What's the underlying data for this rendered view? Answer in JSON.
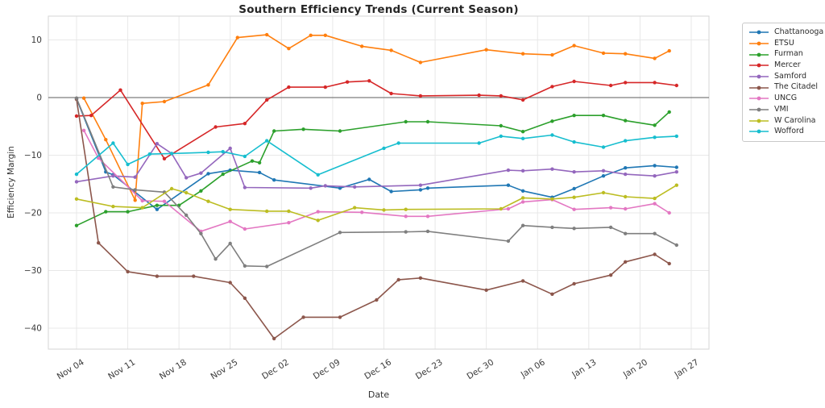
{
  "figure": {
    "title": "Southern Efficiency Trends (Current Season)",
    "xlabel": "Date",
    "ylabel": "Efficiency Margin"
  },
  "chart_data": {
    "type": "line",
    "title": "Southern Efficiency Trends (Current Season)",
    "xlabel": "Date",
    "ylabel": "Efficiency Margin",
    "grid": true,
    "zero_line": true,
    "legend_position": "outside-right",
    "x_tick_labels": [
      "Nov 04",
      "Nov 11",
      "Nov 18",
      "Nov 25",
      "Dec 02",
      "Dec 09",
      "Dec 16",
      "Dec 23",
      "Dec 30",
      "Jan 06",
      "Jan 13",
      "Jan 20",
      "Jan 27"
    ],
    "y_ticks": [
      10,
      0,
      -10,
      -20,
      -30,
      -40
    ],
    "ylim": [
      -43.5,
      13.8
    ],
    "series": [
      {
        "name": "Chattanooga",
        "color": "#1f77b4",
        "points": [
          [
            "Nov 04",
            -0.2
          ],
          [
            "Nov 08",
            -12.9
          ],
          [
            "Nov 09",
            -13.4
          ],
          [
            "Nov 15",
            -19.4
          ],
          [
            "Nov 22",
            -13.2
          ],
          [
            "Nov 25",
            -12.6
          ],
          [
            "Nov 29",
            -13.0
          ],
          [
            "Dec 01",
            -14.3
          ],
          [
            "Dec 10",
            -15.7
          ],
          [
            "Dec 14",
            -14.2
          ],
          [
            "Dec 17",
            -16.3
          ],
          [
            "Dec 21",
            -16.0
          ],
          [
            "Dec 22",
            -15.7
          ],
          [
            "Jan 02",
            -15.2
          ],
          [
            "Jan 04",
            -16.2
          ],
          [
            "Jan 08",
            -17.3
          ],
          [
            "Jan 11",
            -15.8
          ],
          [
            "Jan 15",
            -13.6
          ],
          [
            "Jan 18",
            -12.2
          ],
          [
            "Jan 22",
            -11.8
          ],
          [
            "Jan 25",
            -12.1
          ]
        ]
      },
      {
        "name": "ETSU",
        "color": "#ff7f0e",
        "points": [
          [
            "Nov 05",
            -0.1
          ],
          [
            "Nov 08",
            -7.3
          ],
          [
            "Nov 12",
            -17.8
          ],
          [
            "Nov 13",
            -1.0
          ],
          [
            "Nov 16",
            -0.7
          ],
          [
            "Nov 22",
            2.2
          ],
          [
            "Nov 26",
            10.4
          ],
          [
            "Nov 30",
            10.9
          ],
          [
            "Dec 03",
            8.5
          ],
          [
            "Dec 06",
            10.8
          ],
          [
            "Dec 08",
            10.8
          ],
          [
            "Dec 13",
            8.9
          ],
          [
            "Dec 17",
            8.2
          ],
          [
            "Dec 21",
            6.1
          ],
          [
            "Dec 30",
            8.3
          ],
          [
            "Jan 04",
            7.6
          ],
          [
            "Jan 08",
            7.4
          ],
          [
            "Jan 11",
            9.0
          ],
          [
            "Jan 15",
            7.7
          ],
          [
            "Jan 18",
            7.6
          ],
          [
            "Jan 22",
            6.8
          ],
          [
            "Jan 24",
            8.1
          ]
        ]
      },
      {
        "name": "Furman",
        "color": "#2ca02c",
        "points": [
          [
            "Nov 04",
            -22.2
          ],
          [
            "Nov 08",
            -19.8
          ],
          [
            "Nov 11",
            -19.8
          ],
          [
            "Nov 15",
            -18.7
          ],
          [
            "Nov 18",
            -18.7
          ],
          [
            "Nov 21",
            -16.2
          ],
          [
            "Nov 24",
            -13.3
          ],
          [
            "Nov 28",
            -11.0
          ],
          [
            "Nov 29",
            -11.3
          ],
          [
            "Dec 01",
            -5.8
          ],
          [
            "Dec 05",
            -5.5
          ],
          [
            "Dec 10",
            -5.8
          ],
          [
            "Dec 19",
            -4.2
          ],
          [
            "Dec 22",
            -4.2
          ],
          [
            "Jan 01",
            -4.9
          ],
          [
            "Jan 04",
            -5.9
          ],
          [
            "Jan 08",
            -4.1
          ],
          [
            "Jan 11",
            -3.1
          ],
          [
            "Jan 15",
            -3.1
          ],
          [
            "Jan 18",
            -4.0
          ],
          [
            "Jan 22",
            -4.8
          ],
          [
            "Jan 24",
            -2.5
          ]
        ]
      },
      {
        "name": "Mercer",
        "color": "#d62728",
        "points": [
          [
            "Nov 04",
            -3.2
          ],
          [
            "Nov 06",
            -3.1
          ],
          [
            "Nov 10",
            1.3
          ],
          [
            "Nov 16",
            -10.6
          ],
          [
            "Nov 23",
            -5.1
          ],
          [
            "Nov 27",
            -4.5
          ],
          [
            "Nov 30",
            -0.4
          ],
          [
            "Dec 03",
            1.8
          ],
          [
            "Dec 08",
            1.8
          ],
          [
            "Dec 11",
            2.7
          ],
          [
            "Dec 14",
            2.9
          ],
          [
            "Dec 17",
            0.7
          ],
          [
            "Dec 21",
            0.3
          ],
          [
            "Dec 29",
            0.4
          ],
          [
            "Jan 01",
            0.3
          ],
          [
            "Jan 04",
            -0.4
          ],
          [
            "Jan 08",
            1.9
          ],
          [
            "Jan 11",
            2.8
          ],
          [
            "Jan 16",
            2.1
          ],
          [
            "Jan 18",
            2.6
          ],
          [
            "Jan 22",
            2.6
          ],
          [
            "Jan 25",
            2.1
          ]
        ]
      },
      {
        "name": "Samford",
        "color": "#9467bd",
        "points": [
          [
            "Nov 04",
            -14.6
          ],
          [
            "Nov 09",
            -13.6
          ],
          [
            "Nov 12",
            -13.8
          ],
          [
            "Nov 15",
            -8.0
          ],
          [
            "Nov 17",
            -9.7
          ],
          [
            "Nov 19",
            -13.9
          ],
          [
            "Nov 21",
            -13.1
          ],
          [
            "Nov 25",
            -8.8
          ],
          [
            "Nov 27",
            -15.6
          ],
          [
            "Dec 06",
            -15.7
          ],
          [
            "Dec 08",
            -15.3
          ],
          [
            "Dec 12",
            -15.5
          ],
          [
            "Dec 21",
            -15.2
          ],
          [
            "Jan 02",
            -12.6
          ],
          [
            "Jan 04",
            -12.7
          ],
          [
            "Jan 08",
            -12.4
          ],
          [
            "Jan 11",
            -12.9
          ],
          [
            "Jan 15",
            -12.7
          ],
          [
            "Jan 18",
            -13.3
          ],
          [
            "Jan 22",
            -13.6
          ],
          [
            "Jan 25",
            -12.9
          ]
        ]
      },
      {
        "name": "The Citadel",
        "color": "#8c564b",
        "points": [
          [
            "Nov 04",
            -0.3
          ],
          [
            "Nov 07",
            -25.2
          ],
          [
            "Nov 11",
            -30.2
          ],
          [
            "Nov 15",
            -31.0
          ],
          [
            "Nov 20",
            -31.0
          ],
          [
            "Nov 25",
            -32.1
          ],
          [
            "Nov 27",
            -34.8
          ],
          [
            "Dec 01",
            -41.8
          ],
          [
            "Dec 05",
            -38.1
          ],
          [
            "Dec 10",
            -38.1
          ],
          [
            "Dec 15",
            -35.1
          ],
          [
            "Dec 18",
            -31.6
          ],
          [
            "Dec 21",
            -31.3
          ],
          [
            "Dec 30",
            -33.4
          ],
          [
            "Jan 04",
            -31.8
          ],
          [
            "Jan 08",
            -34.1
          ],
          [
            "Jan 11",
            -32.3
          ],
          [
            "Jan 16",
            -30.8
          ],
          [
            "Jan 18",
            -28.5
          ],
          [
            "Jan 22",
            -27.2
          ],
          [
            "Jan 24",
            -28.8
          ]
        ]
      },
      {
        "name": "UNCG",
        "color": "#e377c2",
        "points": [
          [
            "Nov 05",
            -5.7
          ],
          [
            "Nov 07",
            -10.5
          ],
          [
            "Nov 13",
            -17.9
          ],
          [
            "Nov 16",
            -18.0
          ],
          [
            "Nov 21",
            -23.2
          ],
          [
            "Nov 25",
            -21.5
          ],
          [
            "Nov 27",
            -22.8
          ],
          [
            "Dec 03",
            -21.7
          ],
          [
            "Dec 07",
            -19.8
          ],
          [
            "Dec 13",
            -19.9
          ],
          [
            "Dec 19",
            -20.6
          ],
          [
            "Dec 22",
            -20.6
          ],
          [
            "Jan 02",
            -19.3
          ],
          [
            "Jan 04",
            -18.1
          ],
          [
            "Jan 08",
            -17.7
          ],
          [
            "Jan 11",
            -19.4
          ],
          [
            "Jan 16",
            -19.1
          ],
          [
            "Jan 18",
            -19.3
          ],
          [
            "Jan 22",
            -18.4
          ],
          [
            "Jan 24",
            -20.0
          ]
        ]
      },
      {
        "name": "VMI",
        "color": "#7f7f7f",
        "points": [
          [
            "Nov 04",
            -0.1
          ],
          [
            "Nov 09",
            -15.5
          ],
          [
            "Nov 12",
            -16.0
          ],
          [
            "Nov 16",
            -16.4
          ],
          [
            "Nov 19",
            -20.4
          ],
          [
            "Nov 21",
            -23.6
          ],
          [
            "Nov 23",
            -28.0
          ],
          [
            "Nov 25",
            -25.3
          ],
          [
            "Nov 27",
            -29.2
          ],
          [
            "Nov 30",
            -29.3
          ],
          [
            "Dec 10",
            -23.4
          ],
          [
            "Dec 19",
            -23.3
          ],
          [
            "Dec 22",
            -23.2
          ],
          [
            "Jan 02",
            -24.9
          ],
          [
            "Jan 04",
            -22.2
          ],
          [
            "Jan 08",
            -22.5
          ],
          [
            "Jan 11",
            -22.7
          ],
          [
            "Jan 16",
            -22.5
          ],
          [
            "Jan 18",
            -23.6
          ],
          [
            "Jan 22",
            -23.6
          ],
          [
            "Jan 25",
            -25.6
          ]
        ]
      },
      {
        "name": "W Carolina",
        "color": "#bcbd22",
        "points": [
          [
            "Nov 04",
            -17.6
          ],
          [
            "Nov 09",
            -18.9
          ],
          [
            "Nov 13",
            -19.1
          ],
          [
            "Nov 17",
            -15.8
          ],
          [
            "Nov 19",
            -16.5
          ],
          [
            "Nov 22",
            -18.0
          ],
          [
            "Nov 25",
            -19.4
          ],
          [
            "Nov 30",
            -19.7
          ],
          [
            "Dec 03",
            -19.7
          ],
          [
            "Dec 07",
            -21.3
          ],
          [
            "Dec 12",
            -19.1
          ],
          [
            "Dec 16",
            -19.5
          ],
          [
            "Dec 19",
            -19.4
          ],
          [
            "Jan 01",
            -19.3
          ],
          [
            "Jan 04",
            -17.4
          ],
          [
            "Jan 08",
            -17.6
          ],
          [
            "Jan 11",
            -17.3
          ],
          [
            "Jan 15",
            -16.5
          ],
          [
            "Jan 18",
            -17.2
          ],
          [
            "Jan 22",
            -17.5
          ],
          [
            "Jan 25",
            -15.2
          ]
        ]
      },
      {
        "name": "Wofford",
        "color": "#17becf",
        "points": [
          [
            "Nov 04",
            -13.3
          ],
          [
            "Nov 09",
            -7.9
          ],
          [
            "Nov 11",
            -11.6
          ],
          [
            "Nov 14",
            -9.8
          ],
          [
            "Nov 17",
            -9.7
          ],
          [
            "Nov 22",
            -9.5
          ],
          [
            "Nov 24",
            -9.4
          ],
          [
            "Nov 27",
            -10.2
          ],
          [
            "Nov 30",
            -7.5
          ],
          [
            "Dec 07",
            -13.4
          ],
          [
            "Dec 16",
            -8.8
          ],
          [
            "Dec 18",
            -7.9
          ],
          [
            "Dec 29",
            -7.9
          ],
          [
            "Jan 01",
            -6.7
          ],
          [
            "Jan 04",
            -7.1
          ],
          [
            "Jan 08",
            -6.5
          ],
          [
            "Jan 11",
            -7.7
          ],
          [
            "Jan 15",
            -8.6
          ],
          [
            "Jan 18",
            -7.5
          ],
          [
            "Jan 22",
            -6.9
          ],
          [
            "Jan 25",
            -6.7
          ]
        ]
      }
    ]
  }
}
